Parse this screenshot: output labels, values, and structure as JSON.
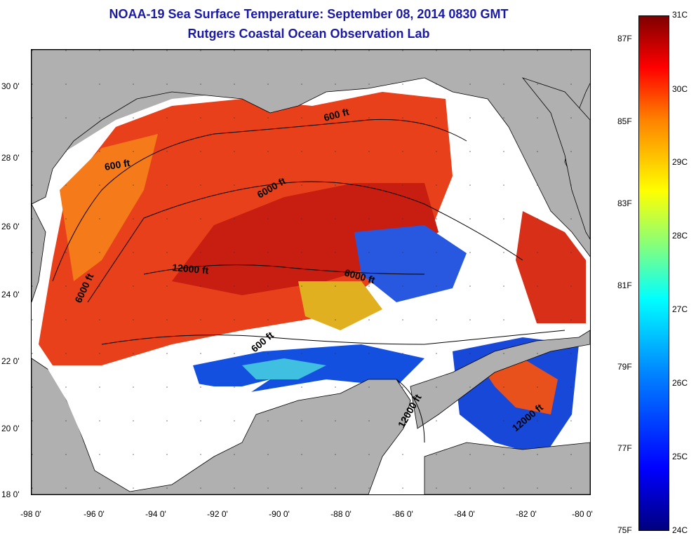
{
  "title": "NOAA-19 Sea Surface Temperature:  September 08, 2014 0830 GMT",
  "subtitle": "Rutgers Coastal Ocean Observation Lab",
  "latitude_ticks": [
    "30 0'",
    "28 0'",
    "26 0'",
    "24 0'",
    "22 0'",
    "20 0'",
    "18 0'"
  ],
  "longitude_ticks": [
    "-98 0'",
    "-96 0'",
    "-94 0'",
    "-92 0'",
    "-90 0'",
    "-88 0'",
    "-86 0'",
    "-84 0'",
    "-82 0'",
    "-80 0'"
  ],
  "contour_labels": [
    "600 ft",
    "600 ft",
    "6000 ft",
    "6000 ft",
    "12000 ft",
    "6000 ft",
    "600 ft",
    "12000 ft",
    "12000 ft"
  ],
  "colorbar": {
    "fahrenheit_labels": [
      "87F",
      "85F",
      "83F",
      "81F",
      "79F",
      "77F",
      "75F"
    ],
    "celsius_labels": [
      "31C",
      "30C",
      "29C",
      "28C",
      "27C",
      "26C",
      "25C",
      "24C"
    ]
  },
  "colors": {
    "title": "#1a1aa6",
    "land": "#b0b0b0",
    "cloud": "#ffffff",
    "warm": "#e8401a",
    "hot": "#b01010",
    "cool": "#0030d0"
  }
}
